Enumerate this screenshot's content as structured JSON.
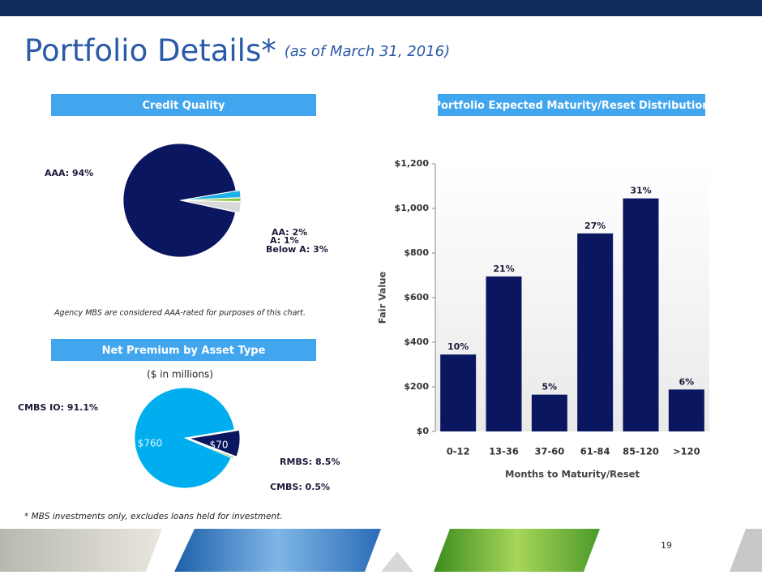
{
  "title": "Portfolio Details*",
  "subtitle": "(as of March 31, 2016)",
  "footnote": "* MBS investments only, excludes loans held for investment.",
  "page_number": "19",
  "chart_data": [
    {
      "type": "pie",
      "title": "Credit Quality",
      "note": "Agency MBS are considered AAA-rated for purposes of this chart.",
      "categories": [
        "AAA",
        "AA",
        "A",
        "Below A"
      ],
      "values": [
        94,
        2,
        1,
        3
      ],
      "value_labels": [
        "AAA: 94%",
        "AA: 2%",
        "A: 1%",
        "Below A: 3%"
      ],
      "colors": [
        "#0b1660",
        "#1fb0ea",
        "#8dc63f",
        "#d9d9d9"
      ]
    },
    {
      "type": "pie",
      "title": "Net Premium by Asset Type",
      "subtitle": "($ in millions)",
      "categories": [
        "CMBS IO",
        "RMBS",
        "CMBS"
      ],
      "values": [
        91.1,
        8.5,
        0.5
      ],
      "value_labels": [
        "CMBS IO: 91.1%",
        "RMBS: 8.5%",
        "CMBS: 0.5%"
      ],
      "amounts": [
        760,
        70,
        null
      ],
      "amount_labels": [
        "$760",
        "$70",
        null
      ],
      "colors": [
        "#00aeef",
        "#0b1660",
        "#8dc63f"
      ]
    },
    {
      "type": "bar",
      "title": "Portfolio Expected Maturity/Reset Distribution",
      "xlabel": "Months to Maturity/Reset",
      "ylabel": "Fair Value",
      "categories": [
        "0-12",
        "13-36",
        "37-60",
        "61-84",
        "85-120",
        ">120"
      ],
      "values": [
        345,
        695,
        165,
        888,
        1045,
        188
      ],
      "percent": [
        10,
        21,
        5,
        27,
        31,
        6
      ],
      "percent_labels": [
        "10%",
        "21%",
        "5%",
        "27%",
        "31%",
        "6%"
      ],
      "color": "#0b1660",
      "ylim": [
        0,
        1200
      ],
      "yticks": [
        {
          "value": 0,
          "label": "$0"
        },
        {
          "value": 200,
          "label": "$200"
        },
        {
          "value": 400,
          "label": "$400"
        },
        {
          "value": 600,
          "label": "$600"
        },
        {
          "value": 800,
          "label": "$800"
        },
        {
          "value": 1000,
          "label": "$1,000"
        },
        {
          "value": 1200,
          "label": "$1,200"
        }
      ]
    }
  ]
}
